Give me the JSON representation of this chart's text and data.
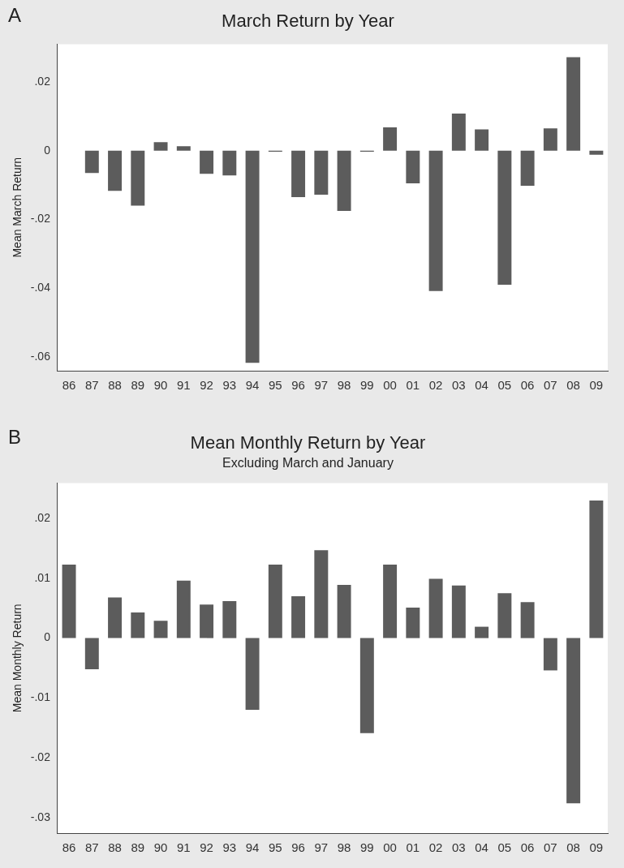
{
  "chart_data": [
    {
      "type": "bar",
      "title": "March Return by Year",
      "ylabel": "Mean March Return",
      "annotations": [
        "A"
      ],
      "categories": [
        "86",
        "87",
        "88",
        "89",
        "90",
        "91",
        "92",
        "93",
        "94",
        "95",
        "96",
        "97",
        "98",
        "99",
        "00",
        "01",
        "02",
        "03",
        "04",
        "05",
        "06",
        "07",
        "08",
        "09"
      ],
      "values": [
        null,
        -0.0065,
        -0.0117,
        -0.016,
        0.0025,
        0.0013,
        -0.0067,
        -0.0072,
        -0.0617,
        -0.0003,
        -0.0135,
        -0.0128,
        -0.0175,
        -0.0003,
        0.0068,
        -0.0095,
        -0.0408,
        0.0108,
        0.0062,
        -0.039,
        -0.0102,
        0.0065,
        0.0272,
        -0.0012
      ],
      "color": "#5c5c5c",
      "ylim": [
        -0.064,
        0.031
      ],
      "yticks": [
        {
          "value": 0.02,
          "label": ".02"
        },
        {
          "value": 0,
          "label": "0"
        },
        {
          "value": -0.02,
          "label": "-.02"
        },
        {
          "value": -0.04,
          "label": "-.04"
        },
        {
          "value": -0.06,
          "label": "-.06"
        }
      ],
      "grid": false,
      "legend": false
    },
    {
      "type": "bar",
      "title": "Mean Monthly Return by Year",
      "subtitle": "Excluding March and January",
      "ylabel": "Mean Monthly Return",
      "annotations": [
        "B"
      ],
      "categories": [
        "86",
        "87",
        "88",
        "89",
        "90",
        "91",
        "92",
        "93",
        "94",
        "95",
        "96",
        "97",
        "98",
        "99",
        "00",
        "01",
        "02",
        "03",
        "04",
        "05",
        "06",
        "07",
        "08",
        "09"
      ],
      "values": [
        0.0123,
        -0.0052,
        0.0068,
        0.0043,
        0.0029,
        0.0096,
        0.0056,
        0.0062,
        -0.012,
        0.0123,
        0.007,
        0.0147,
        0.0089,
        -0.0159,
        0.0123,
        0.0051,
        0.0099,
        0.0088,
        0.0019,
        0.0075,
        0.006,
        -0.0054,
        -0.0276,
        0.023
      ],
      "color": "#5c5c5c",
      "ylim": [
        -0.0326,
        0.0259
      ],
      "yticks": [
        {
          "value": 0.02,
          "label": ".02"
        },
        {
          "value": 0.01,
          "label": ".01"
        },
        {
          "value": 0,
          "label": "0"
        },
        {
          "value": -0.01,
          "label": "-.01"
        },
        {
          "value": -0.02,
          "label": "-.02"
        },
        {
          "value": -0.03,
          "label": "-.03"
        }
      ],
      "grid": false,
      "legend": false
    }
  ]
}
